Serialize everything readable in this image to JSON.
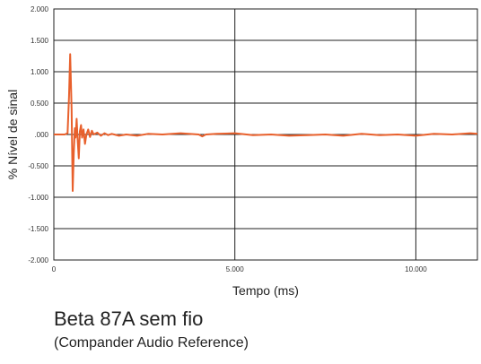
{
  "chart_data": {
    "type": "line",
    "title": "Beta 87A sem fio",
    "subtitle": "(Compander Audio Reference)",
    "xlabel": "Tempo (ms)",
    "ylabel": "% Nível de sinal",
    "xlim": [
      0,
      11.7
    ],
    "ylim": [
      -2.0,
      2.0
    ],
    "x_ticks": [
      0,
      5,
      10
    ],
    "x_tick_labels": [
      "0",
      "5.000",
      "10.000"
    ],
    "y_ticks": [
      2.0,
      1.5,
      1.0,
      0.5,
      0.0,
      -0.5,
      -1.0,
      -1.5,
      -2.0
    ],
    "y_tick_labels": [
      "2.000",
      "1.500",
      "1.000",
      "0.500",
      ".000",
      "-0.500",
      "-1.000",
      "-1.500",
      "-2.000"
    ],
    "grid": true,
    "series": [
      {
        "color": "#e8602c",
        "x": [
          0,
          0.3,
          0.38,
          0.42,
          0.45,
          0.49,
          0.52,
          0.55,
          0.58,
          0.6,
          0.63,
          0.66,
          0.69,
          0.72,
          0.75,
          0.78,
          0.82,
          0.86,
          0.9,
          0.95,
          1.0,
          1.05,
          1.1,
          1.2,
          1.3,
          1.4,
          1.5,
          1.6,
          1.8,
          2.0,
          2.3,
          2.6,
          3.0,
          3.5,
          4.0,
          4.1,
          4.2,
          4.5,
          5.0,
          5.5,
          6.0,
          6.5,
          7.0,
          7.5,
          8.0,
          8.5,
          9.0,
          9.5,
          10.0,
          10.5,
          11.0,
          11.5,
          11.7
        ],
        "y": [
          0,
          0,
          0.02,
          0.6,
          1.28,
          0.4,
          -0.9,
          -0.3,
          0.1,
          -0.05,
          0.25,
          -0.1,
          -0.38,
          0.05,
          0.15,
          -0.05,
          0.08,
          -0.15,
          0.0,
          0.08,
          -0.04,
          0.06,
          0.0,
          0.03,
          -0.02,
          0.02,
          -0.01,
          0.01,
          -0.02,
          0.0,
          -0.02,
          0.01,
          0.0,
          0.02,
          0.0,
          -0.03,
          0.0,
          0.01,
          0.02,
          -0.01,
          0.0,
          -0.02,
          -0.01,
          0.0,
          -0.02,
          0.01,
          -0.01,
          0.0,
          -0.02,
          0.01,
          0.0,
          0.02,
          0.01
        ]
      }
    ]
  }
}
